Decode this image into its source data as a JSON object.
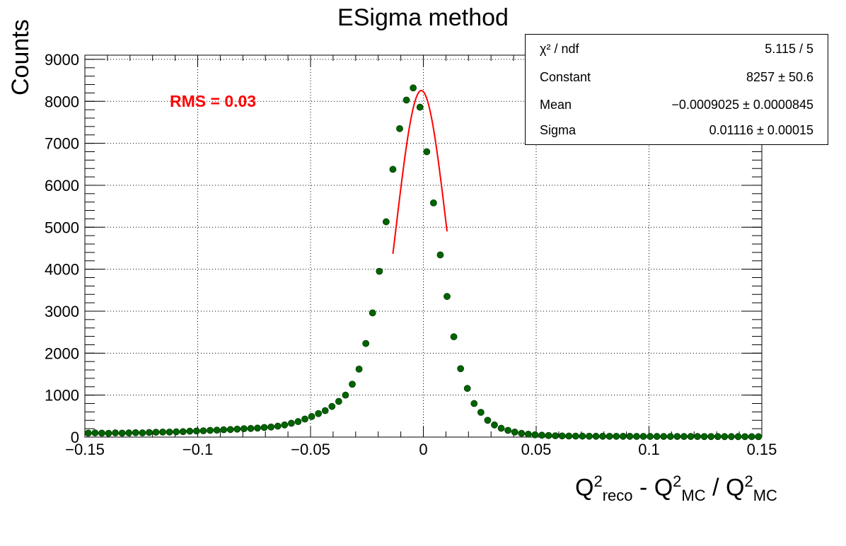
{
  "chart_data": {
    "type": "scatter",
    "title": "ESigma method",
    "xlabel": {
      "parts": [
        "Q",
        "2",
        "reco",
        " - Q",
        "2",
        "MC",
        " / Q",
        "2",
        "MC"
      ]
    },
    "ylabel": "Counts",
    "xlim": [
      -0.15,
      0.15
    ],
    "ylim": [
      0,
      9100
    ],
    "x_ticks": [
      "−0.15",
      "−0.1",
      "−0.05",
      "0",
      "0.05",
      "0.1",
      "0.15"
    ],
    "y_ticks": [
      "0",
      "1000",
      "2000",
      "3000",
      "4000",
      "5000",
      "6000",
      "7000",
      "8000",
      "9000"
    ],
    "grid": true,
    "annotation": "RMS = 0.03",
    "series": [
      {
        "marker_color": "#006400",
        "x": [
          -0.1485,
          -0.1455,
          -0.1425,
          -0.1395,
          -0.1365,
          -0.1335,
          -0.1305,
          -0.1275,
          -0.1245,
          -0.1215,
          -0.1185,
          -0.1155,
          -0.1125,
          -0.1095,
          -0.1065,
          -0.1035,
          -0.1005,
          -0.0975,
          -0.0945,
          -0.0915,
          -0.0885,
          -0.0855,
          -0.0825,
          -0.0795,
          -0.0765,
          -0.0735,
          -0.0705,
          -0.0675,
          -0.0645,
          -0.0615,
          -0.0585,
          -0.0555,
          -0.0525,
          -0.0495,
          -0.0465,
          -0.0435,
          -0.0405,
          -0.0375,
          -0.0345,
          -0.0315,
          -0.0285,
          -0.0255,
          -0.0225,
          -0.0195,
          -0.0165,
          -0.0135,
          -0.0105,
          -0.0075,
          -0.0045,
          -0.0015,
          0.0015,
          0.0045,
          0.0075,
          0.0105,
          0.0135,
          0.0165,
          0.0195,
          0.0225,
          0.0255,
          0.0285,
          0.0315,
          0.0345,
          0.0375,
          0.0405,
          0.0435,
          0.0465,
          0.0495,
          0.0525,
          0.0555,
          0.0585,
          0.0615,
          0.0645,
          0.0675,
          0.0705,
          0.0735,
          0.0765,
          0.0795,
          0.0825,
          0.0855,
          0.0885,
          0.0915,
          0.0945,
          0.0975,
          0.1005,
          0.1035,
          0.1065,
          0.1095,
          0.1125,
          0.1155,
          0.1185,
          0.1215,
          0.1245,
          0.1275,
          0.1305,
          0.1335,
          0.1365,
          0.1395,
          0.1425,
          0.1455,
          0.1485
        ],
        "y": [
          95,
          100,
          95,
          90,
          100,
          95,
          100,
          105,
          100,
          110,
          115,
          120,
          120,
          125,
          130,
          140,
          145,
          150,
          160,
          165,
          175,
          180,
          190,
          200,
          205,
          215,
          230,
          240,
          260,
          290,
          330,
          370,
          430,
          490,
          560,
          630,
          730,
          850,
          1000,
          1260,
          1620,
          2230,
          2960,
          3950,
          5130,
          6380,
          7350,
          8030,
          8320,
          7860,
          6800,
          5580,
          4340,
          3350,
          2390,
          1630,
          1160,
          800,
          590,
          400,
          290,
          210,
          160,
          120,
          90,
          70,
          55,
          45,
          38,
          32,
          28,
          25,
          23,
          22,
          21,
          20,
          20,
          19,
          19,
          18,
          18,
          17,
          17,
          16,
          16,
          15,
          15,
          15,
          14,
          14,
          14,
          13,
          13,
          13,
          12,
          12,
          12,
          11,
          11,
          10
        ]
      },
      {
        "name": "fit",
        "line_color": "#ff0000",
        "function": "gaus",
        "constant": 8257,
        "mean": -0.0009025,
        "sigma": 0.01116,
        "x_range": [
          -0.0135,
          0.0105
        ]
      }
    ]
  },
  "stats_box": {
    "rows": [
      {
        "label": "χ² / ndf",
        "value": "5.115 / 5"
      },
      {
        "label": "Constant",
        "value": "8257   ± 50.6"
      },
      {
        "label": "Mean",
        "value": "−0.0009025   ± 0.0000845"
      },
      {
        "label": "Sigma",
        "value": "0.01116   ± 0.00015"
      }
    ]
  }
}
